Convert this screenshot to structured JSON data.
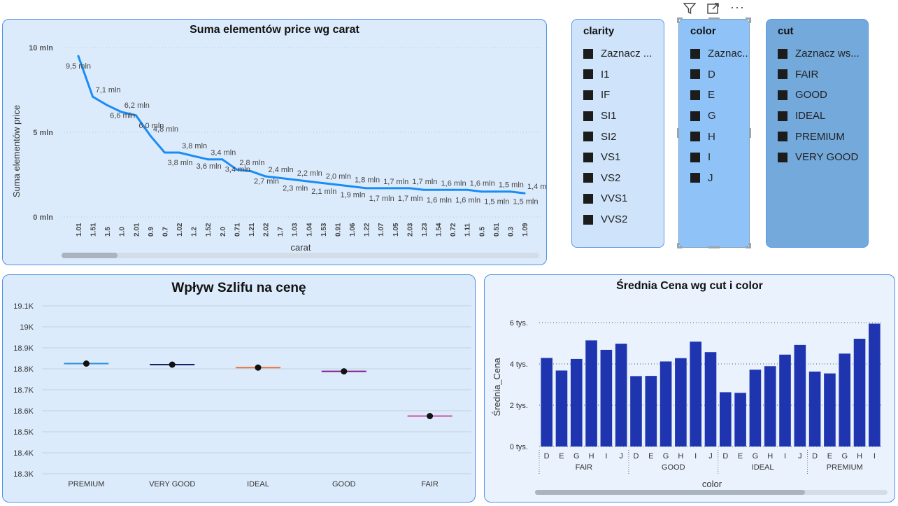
{
  "chart1": {
    "title": "Suma elementów price wg carat",
    "ylabel": "Suma elementów price",
    "xlabel": "carat",
    "yticks": [
      "10 mln",
      "5 mln",
      "0 mln"
    ]
  },
  "chart2": {
    "title": "Wpływ Szlifu na cenę",
    "yticks": [
      "19.1K",
      "19K",
      "18.9K",
      "18.8K",
      "18.7K",
      "18.6K",
      "18.5K",
      "18.4K",
      "18.3K"
    ]
  },
  "chart3": {
    "title": "Średnia Cena wg cut i color",
    "ylabel": "Średnia_Cena",
    "xlabel": "color",
    "yticks": [
      "6 tys.",
      "4 tys.",
      "2 tys.",
      "0 tys."
    ]
  },
  "slicers": {
    "clarity": {
      "title": "clarity",
      "items": [
        "Zaznacz ...",
        "I1",
        "IF",
        "SI1",
        "SI2",
        "VS1",
        "VS2",
        "VVS1",
        "VVS2"
      ]
    },
    "color": {
      "title": "color",
      "items": [
        "Zaznac...",
        "D",
        "E",
        "G",
        "H",
        "I",
        "J"
      ]
    },
    "cut": {
      "title": "cut",
      "items": [
        "Zaznacz ws...",
        "FAIR",
        "GOOD",
        "IDEAL",
        "PREMIUM",
        "VERY GOOD"
      ]
    }
  },
  "toolbar": {
    "icons": [
      "filter-icon",
      "focus-mode-icon",
      "more-options-icon"
    ],
    "more_glyph": "···"
  },
  "colors": {
    "line": "#1a8cf5",
    "bar": "#1f35b0",
    "card_bg": "#dcebfb",
    "slicer_clarity": "#cfe4fb",
    "slicer_color": "#8fc3f7",
    "slicer_cut": "#74a9dc"
  },
  "chart_data": [
    {
      "type": "line",
      "title": "Suma elementów price wg carat",
      "xlabel": "carat",
      "ylabel": "Suma elementów price",
      "ylim": [
        0,
        10000000
      ],
      "x": [
        "1.01",
        "1.51",
        "1.5",
        "1.0",
        "2.01",
        "0.9",
        "0.7",
        "1.02",
        "1.2",
        "1.52",
        "2.0",
        "0.71",
        "1.21",
        "2.02",
        "1.7",
        "1.03",
        "1.04",
        "1.53",
        "0.91",
        "1.06",
        "1.22",
        "1.07",
        "1.05",
        "2.03",
        "1.23",
        "1.54",
        "0.72",
        "1.11",
        "0.5",
        "0.51",
        "0.3",
        "1.09"
      ],
      "values": [
        9500000,
        7100000,
        6600000,
        6200000,
        6000000,
        4800000,
        3800000,
        3800000,
        3600000,
        3400000,
        3400000,
        2800000,
        2700000,
        2400000,
        2300000,
        2200000,
        2100000,
        2000000,
        1900000,
        1800000,
        1700000,
        1700000,
        1700000,
        1700000,
        1600000,
        1600000,
        1600000,
        1600000,
        1500000,
        1500000,
        1500000,
        1400000
      ],
      "labels": [
        "9,5 mln",
        "7,1 mln",
        "6,6 mln",
        "6,2 mln",
        "6,0 mln",
        "4,8 mln",
        "3,8 mln",
        "3,8 mln",
        "3,6 mln",
        "3,4 mln",
        "3,4 mln",
        "2,8 mln",
        "2,7 mln",
        "2,4 mln",
        "2,3 mln",
        "2,2 mln",
        "2,1 mln",
        "2,0 mln",
        "1,9 mln",
        "1,8 mln",
        "1,7 mln",
        "1,7 mln",
        "1,7 mln",
        "1,7 mln",
        "1,6 mln",
        "1,6 mln",
        "1,6 mln",
        "1,6 mln",
        "1,5 mln",
        "1,5 mln",
        "1,5 mln",
        "1,4 mln"
      ],
      "grid": true
    },
    {
      "type": "scatter",
      "title": "Wpływ Szlifu na cenę",
      "categories": [
        "PREMIUM",
        "VERY GOOD",
        "IDEAL",
        "GOOD",
        "FAIR"
      ],
      "values": [
        18825,
        18820,
        18806,
        18788,
        18575
      ],
      "colors": [
        "#2b8fe0",
        "#16206b",
        "#e8743b",
        "#7b1d8c",
        "#d04fa8"
      ],
      "ylim": [
        18300,
        19100
      ],
      "grid": true
    },
    {
      "type": "bar",
      "title": "Średnia Cena wg cut i color",
      "xlabel": "color",
      "ylabel": "Średnia_Cena",
      "ylim": [
        0,
        6000
      ],
      "groups": [
        {
          "name": "FAIR",
          "categories": [
            "D",
            "E",
            "G",
            "H",
            "I",
            "J"
          ],
          "values": [
            4290,
            3680,
            4240,
            5140,
            4680,
            4980
          ]
        },
        {
          "name": "GOOD",
          "categories": [
            "D",
            "E",
            "G",
            "H",
            "I",
            "J"
          ],
          "values": [
            3410,
            3420,
            4120,
            4280,
            5080,
            4570
          ]
        },
        {
          "name": "IDEAL",
          "categories": [
            "D",
            "E",
            "G",
            "H",
            "I",
            "J"
          ],
          "values": [
            2630,
            2600,
            3720,
            3890,
            4450,
            4920
          ]
        },
        {
          "name": "PREMIUM",
          "categories": [
            "D",
            "E",
            "G",
            "H",
            "I"
          ],
          "values": [
            3630,
            3540,
            4500,
            5220,
            5950
          ]
        }
      ],
      "grid": true
    }
  ]
}
